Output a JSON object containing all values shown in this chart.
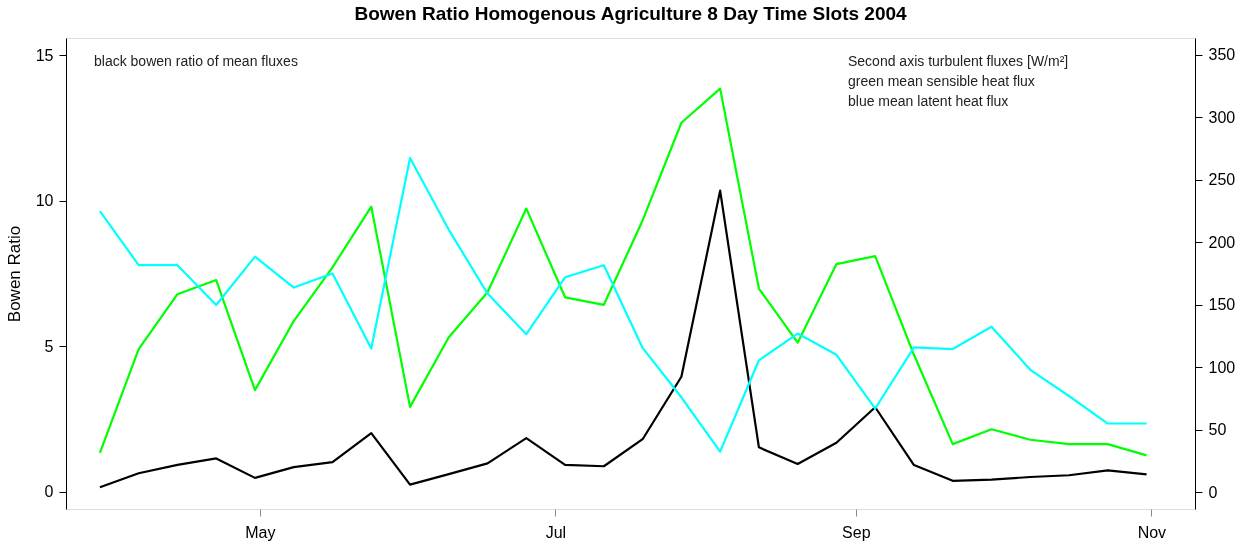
{
  "chart_data": {
    "type": "line",
    "title": "Bowen Ratio Homogenous Agriculture 8 Day Time Slots 2004",
    "ylabel": "Bowen Ratio",
    "annotations": [
      "black bowen ratio of mean fluxes",
      "Second axis turbulent fluxes [W/m²]",
      "green mean sensible heat flux",
      "blue mean latent heat flux"
    ],
    "x": [
      "2004-03-29",
      "2004-04-06",
      "2004-04-14",
      "2004-04-22",
      "2004-04-30",
      "2004-05-08",
      "2004-05-16",
      "2004-05-24",
      "2004-06-01",
      "2004-06-09",
      "2004-06-17",
      "2004-06-25",
      "2004-07-03",
      "2004-07-11",
      "2004-07-19",
      "2004-07-27",
      "2004-08-04",
      "2004-08-12",
      "2004-08-20",
      "2004-08-28",
      "2004-09-05",
      "2004-09-13",
      "2004-09-21",
      "2004-09-29",
      "2004-10-07",
      "2004-10-15",
      "2004-10-23",
      "2004-10-31"
    ],
    "series": [
      {
        "color": "#00ff00",
        "axis": "y2",
        "values": [
          31.6,
          114.6,
          158.5,
          169.8,
          81.7,
          137,
          180,
          228.6,
          68.3,
          124,
          160,
          227,
          156,
          150,
          217.5,
          295.7,
          323,
          163,
          119.7,
          182.6,
          189,
          110,
          38.5,
          50.4,
          42,
          38.5,
          38.5,
          29.5
        ]
      },
      {
        "color": "#00ffff",
        "axis": "y2",
        "values": [
          225,
          181.7,
          181.7,
          149.8,
          188.6,
          163.8,
          175,
          115,
          267.4,
          210,
          159,
          126.5,
          172,
          181.7,
          115.5,
          76,
          32.5,
          105.6,
          127,
          110,
          67,
          116,
          114.6,
          132.5,
          98,
          77,
          55,
          55
        ]
      },
      {
        "color": "#000000",
        "axis": "y",
        "values": [
          0.15,
          0.63,
          0.92,
          1.14,
          0.47,
          0.84,
          1.01,
          2.01,
          0.24,
          0.6,
          0.97,
          1.84,
          0.92,
          0.87,
          1.8,
          3.95,
          10.35,
          1.52,
          0.95,
          1.68,
          2.9,
          0.91,
          0.37,
          0.41,
          0.5,
          0.56,
          0.73,
          0.59
        ]
      }
    ],
    "xlim": [
      "2004-03-22",
      "2004-11-10"
    ],
    "xticks": [
      {
        "value": "2004-05-01",
        "label": "May"
      },
      {
        "value": "2004-07-01",
        "label": "Jul"
      },
      {
        "value": "2004-09-01",
        "label": "Sep"
      },
      {
        "value": "2004-11-01",
        "label": "Nov"
      }
    ],
    "ylim": [
      -0.6,
      15.6
    ],
    "yticks": [
      0,
      5,
      10,
      15
    ],
    "y2lim": [
      -13.4,
      363.5
    ],
    "y2ticks": [
      0,
      50,
      100,
      150,
      200,
      250,
      300,
      350
    ],
    "legend": false,
    "grid": false
  }
}
